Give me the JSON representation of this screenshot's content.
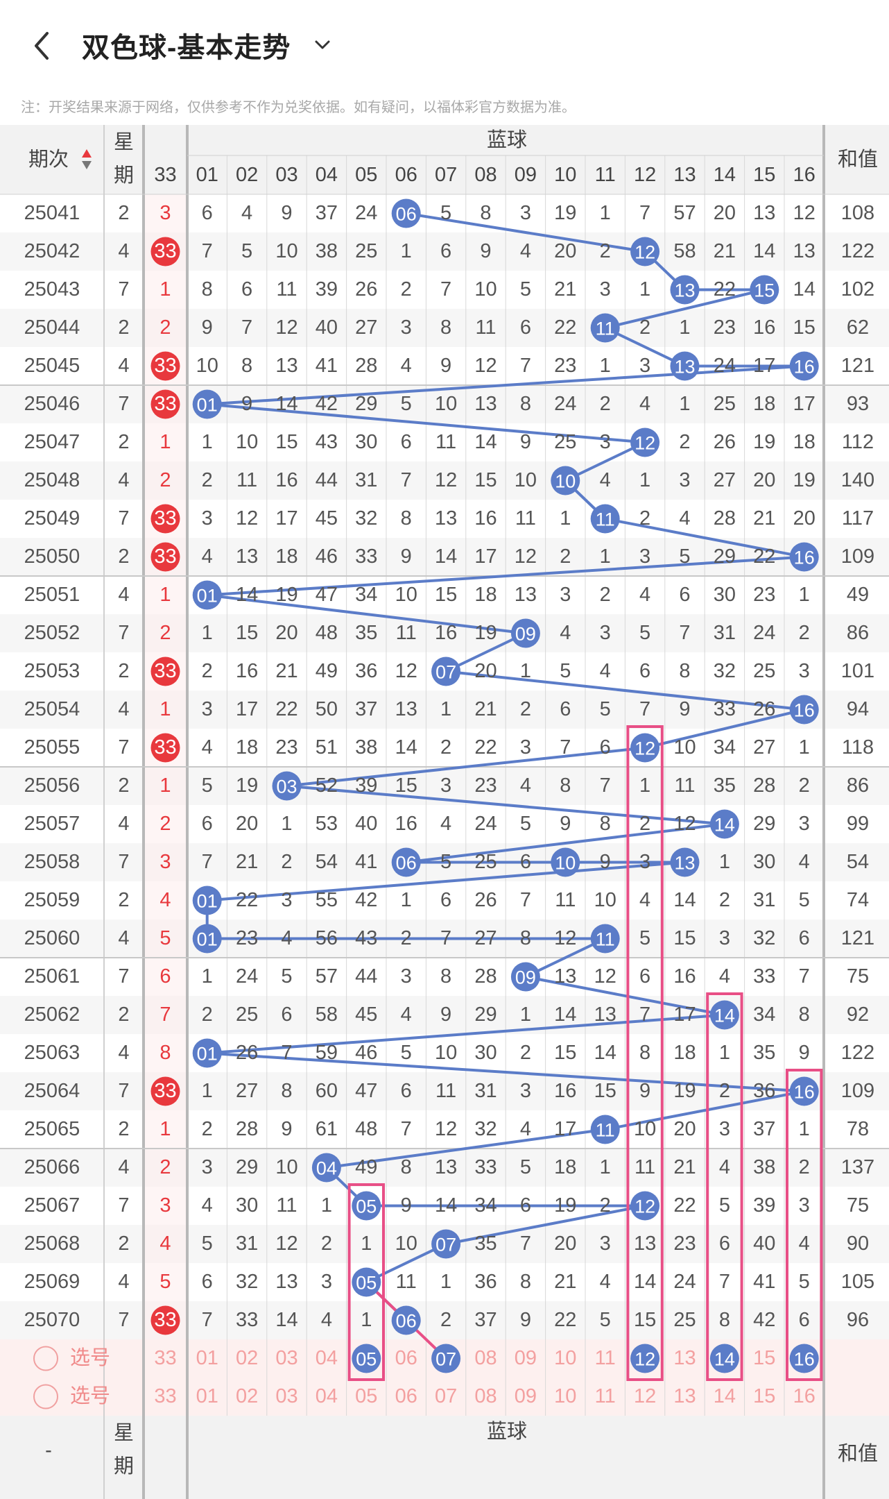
{
  "header": {
    "title": "双色球-基本走势",
    "back_icon": "chevron-left-icon",
    "dropdown_icon": "chevron-down-icon"
  },
  "note": "注：开奖结果来源于网络，仅供参考不作为兑奖依据。如有疑问，以福体彩官方数据为准。",
  "table_header": {
    "issue_label": "期次",
    "sort_icon": "sort-up-down-icon",
    "weekday_label": "星期",
    "group_label": "蓝球",
    "skip_col": "33",
    "columns": [
      "01",
      "02",
      "03",
      "04",
      "05",
      "06",
      "07",
      "08",
      "09",
      "10",
      "11",
      "12",
      "13",
      "14",
      "15",
      "16"
    ],
    "sum_label": "和值"
  },
  "rows": [
    {
      "issue": "25041",
      "wk": "2",
      "skip": "3",
      "cells": [
        "6",
        "4",
        "9",
        "37",
        "24",
        "06",
        "5",
        "8",
        "3",
        "19",
        "1",
        "7",
        "57",
        "20",
        "13",
        "12"
      ],
      "sum": "108"
    },
    {
      "issue": "25042",
      "wk": "4",
      "skip": "33",
      "cells": [
        "7",
        "5",
        "10",
        "38",
        "25",
        "1",
        "6",
        "9",
        "4",
        "20",
        "2",
        "12",
        "58",
        "21",
        "14",
        "13"
      ],
      "sum": "122"
    },
    {
      "issue": "25043",
      "wk": "7",
      "skip": "1",
      "cells": [
        "8",
        "6",
        "11",
        "39",
        "26",
        "2",
        "7",
        "10",
        "5",
        "21",
        "3",
        "1",
        "13",
        "22",
        "15",
        "14"
      ],
      "sum": "102"
    },
    {
      "issue": "25044",
      "wk": "2",
      "skip": "2",
      "cells": [
        "9",
        "7",
        "12",
        "40",
        "27",
        "3",
        "8",
        "11",
        "6",
        "22",
        "11",
        "2",
        "1",
        "23",
        "16",
        "15"
      ],
      "sum": "62"
    },
    {
      "issue": "25045",
      "wk": "4",
      "skip": "33",
      "cells": [
        "10",
        "8",
        "13",
        "41",
        "28",
        "4",
        "9",
        "12",
        "7",
        "23",
        "1",
        "3",
        "13",
        "24",
        "17",
        "16"
      ],
      "sum": "121"
    },
    {
      "issue": "25046",
      "wk": "7",
      "skip": "33",
      "cells": [
        "01",
        "9",
        "14",
        "42",
        "29",
        "5",
        "10",
        "13",
        "8",
        "24",
        "2",
        "4",
        "1",
        "25",
        "18",
        "17"
      ],
      "sum": "93"
    },
    {
      "issue": "25047",
      "wk": "2",
      "skip": "1",
      "cells": [
        "1",
        "10",
        "15",
        "43",
        "30",
        "6",
        "11",
        "14",
        "9",
        "25",
        "3",
        "12",
        "2",
        "26",
        "19",
        "18"
      ],
      "sum": "112"
    },
    {
      "issue": "25048",
      "wk": "4",
      "skip": "2",
      "cells": [
        "2",
        "11",
        "16",
        "44",
        "31",
        "7",
        "12",
        "15",
        "10",
        "10",
        "4",
        "1",
        "3",
        "27",
        "20",
        "19"
      ],
      "sum": "140"
    },
    {
      "issue": "25049",
      "wk": "7",
      "skip": "33",
      "cells": [
        "3",
        "12",
        "17",
        "45",
        "32",
        "8",
        "13",
        "16",
        "11",
        "1",
        "11",
        "2",
        "4",
        "28",
        "21",
        "20"
      ],
      "sum": "117"
    },
    {
      "issue": "25050",
      "wk": "2",
      "skip": "33",
      "cells": [
        "4",
        "13",
        "18",
        "46",
        "33",
        "9",
        "14",
        "17",
        "12",
        "2",
        "1",
        "3",
        "5",
        "29",
        "22",
        "16"
      ],
      "sum": "109"
    },
    {
      "issue": "25051",
      "wk": "4",
      "skip": "1",
      "cells": [
        "01",
        "14",
        "19",
        "47",
        "34",
        "10",
        "15",
        "18",
        "13",
        "3",
        "2",
        "4",
        "6",
        "30",
        "23",
        "1"
      ],
      "sum": "49"
    },
    {
      "issue": "25052",
      "wk": "7",
      "skip": "2",
      "cells": [
        "1",
        "15",
        "20",
        "48",
        "35",
        "11",
        "16",
        "19",
        "09",
        "4",
        "3",
        "5",
        "7",
        "31",
        "24",
        "2"
      ],
      "sum": "86"
    },
    {
      "issue": "25053",
      "wk": "2",
      "skip": "33",
      "cells": [
        "2",
        "16",
        "21",
        "49",
        "36",
        "12",
        "07",
        "20",
        "1",
        "5",
        "4",
        "6",
        "8",
        "32",
        "25",
        "3"
      ],
      "sum": "101"
    },
    {
      "issue": "25054",
      "wk": "4",
      "skip": "1",
      "cells": [
        "3",
        "17",
        "22",
        "50",
        "37",
        "13",
        "1",
        "21",
        "2",
        "6",
        "5",
        "7",
        "9",
        "33",
        "26",
        "16"
      ],
      "sum": "94"
    },
    {
      "issue": "25055",
      "wk": "7",
      "skip": "33",
      "cells": [
        "4",
        "18",
        "23",
        "51",
        "38",
        "14",
        "2",
        "22",
        "3",
        "7",
        "6",
        "12",
        "10",
        "34",
        "27",
        "1"
      ],
      "sum": "118"
    },
    {
      "issue": "25056",
      "wk": "2",
      "skip": "1",
      "cells": [
        "5",
        "19",
        "03",
        "52",
        "39",
        "15",
        "3",
        "23",
        "4",
        "8",
        "7",
        "1",
        "11",
        "35",
        "28",
        "2"
      ],
      "sum": "86"
    },
    {
      "issue": "25057",
      "wk": "4",
      "skip": "2",
      "cells": [
        "6",
        "20",
        "1",
        "53",
        "40",
        "16",
        "4",
        "24",
        "5",
        "9",
        "8",
        "2",
        "12",
        "14",
        "29",
        "3"
      ],
      "sum": "99"
    },
    {
      "issue": "25058",
      "wk": "7",
      "skip": "3",
      "cells": [
        "7",
        "21",
        "2",
        "54",
        "41",
        "06",
        "5",
        "25",
        "6",
        "10",
        "9",
        "3",
        "13",
        "1",
        "30",
        "4"
      ],
      "sum": "54"
    },
    {
      "issue": "25059",
      "wk": "2",
      "skip": "4",
      "cells": [
        "01",
        "22",
        "3",
        "55",
        "42",
        "1",
        "6",
        "26",
        "7",
        "11",
        "10",
        "4",
        "14",
        "2",
        "31",
        "5"
      ],
      "sum": "74"
    },
    {
      "issue": "25060",
      "wk": "4",
      "skip": "5",
      "cells": [
        "01",
        "23",
        "4",
        "56",
        "43",
        "2",
        "7",
        "27",
        "8",
        "12",
        "11",
        "5",
        "15",
        "3",
        "32",
        "6"
      ],
      "sum": "121"
    },
    {
      "issue": "25061",
      "wk": "7",
      "skip": "6",
      "cells": [
        "1",
        "24",
        "5",
        "57",
        "44",
        "3",
        "8",
        "28",
        "09",
        "13",
        "12",
        "6",
        "16",
        "4",
        "33",
        "7"
      ],
      "sum": "75"
    },
    {
      "issue": "25062",
      "wk": "2",
      "skip": "7",
      "cells": [
        "2",
        "25",
        "6",
        "58",
        "45",
        "4",
        "9",
        "29",
        "1",
        "14",
        "13",
        "7",
        "17",
        "14",
        "34",
        "8"
      ],
      "sum": "92"
    },
    {
      "issue": "25063",
      "wk": "4",
      "skip": "8",
      "cells": [
        "01",
        "26",
        "7",
        "59",
        "46",
        "5",
        "10",
        "30",
        "2",
        "15",
        "14",
        "8",
        "18",
        "1",
        "35",
        "9"
      ],
      "sum": "122"
    },
    {
      "issue": "25064",
      "wk": "7",
      "skip": "33",
      "cells": [
        "1",
        "27",
        "8",
        "60",
        "47",
        "6",
        "11",
        "31",
        "3",
        "16",
        "15",
        "9",
        "19",
        "2",
        "36",
        "16"
      ],
      "sum": "109"
    },
    {
      "issue": "25065",
      "wk": "2",
      "skip": "1",
      "cells": [
        "2",
        "28",
        "9",
        "61",
        "48",
        "7",
        "12",
        "32",
        "4",
        "17",
        "11",
        "10",
        "20",
        "3",
        "37",
        "1"
      ],
      "sum": "78"
    },
    {
      "issue": "25066",
      "wk": "4",
      "skip": "2",
      "cells": [
        "3",
        "29",
        "10",
        "04",
        "49",
        "8",
        "13",
        "33",
        "5",
        "18",
        "1",
        "11",
        "21",
        "4",
        "38",
        "2"
      ],
      "sum": "137"
    },
    {
      "issue": "25067",
      "wk": "7",
      "skip": "3",
      "cells": [
        "4",
        "30",
        "11",
        "1",
        "05",
        "9",
        "14",
        "34",
        "6",
        "19",
        "2",
        "12",
        "22",
        "5",
        "39",
        "3"
      ],
      "sum": "75"
    },
    {
      "issue": "25068",
      "wk": "2",
      "skip": "4",
      "cells": [
        "5",
        "31",
        "12",
        "2",
        "1",
        "10",
        "07",
        "35",
        "7",
        "20",
        "3",
        "13",
        "23",
        "6",
        "40",
        "4"
      ],
      "sum": "90"
    },
    {
      "issue": "25069",
      "wk": "4",
      "skip": "5",
      "cells": [
        "6",
        "32",
        "13",
        "3",
        "05",
        "11",
        "1",
        "36",
        "8",
        "21",
        "4",
        "14",
        "24",
        "7",
        "41",
        "5"
      ],
      "sum": "105"
    },
    {
      "issue": "25070",
      "wk": "7",
      "skip": "33",
      "cells": [
        "7",
        "33",
        "14",
        "4",
        "1",
        "06",
        "2",
        "37",
        "9",
        "22",
        "5",
        "15",
        "25",
        "8",
        "42",
        "6"
      ],
      "sum": "96"
    }
  ],
  "pick_rows": [
    {
      "label": "选号",
      "radio_icon": "radio-circle-icon",
      "skip": "33",
      "cells": [
        "01",
        "02",
        "03",
        "04",
        "05",
        "06",
        "07",
        "08",
        "09",
        "10",
        "11",
        "12",
        "13",
        "14",
        "15",
        "16"
      ]
    },
    {
      "label": "选号",
      "radio_icon": "radio-circle-icon",
      "skip": "33",
      "cells": [
        "01",
        "02",
        "03",
        "04",
        "05",
        "06",
        "07",
        "08",
        "09",
        "10",
        "11",
        "12",
        "13",
        "14",
        "15",
        "16"
      ]
    }
  ],
  "pick_selected": [
    "05",
    "07",
    "12",
    "14",
    "16"
  ],
  "footer_header": {
    "issue_label": "-",
    "weekday_label": "星期",
    "group_label": "蓝球",
    "sum_label": "和值"
  },
  "colors": {
    "blue_ball": "#5b7cc8",
    "red_ball": "#e8383d",
    "highlight_box": "#e84f86",
    "pick_row_bg": "#fdf0ef",
    "header_bg": "#f2f2f2"
  }
}
